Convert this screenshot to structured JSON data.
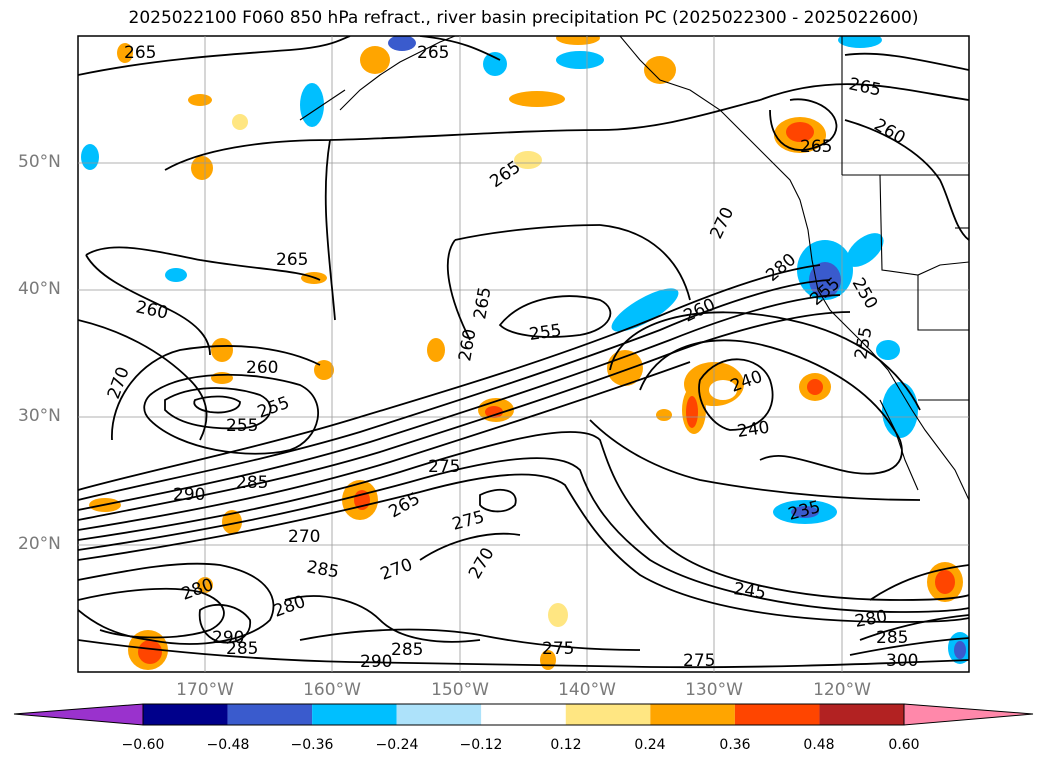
{
  "title": "2025022100 F060 850 hPa refract., river basin precipitation PC (2025022300 - 2025022600)",
  "lat_labels": [
    "50°N",
    "40°N",
    "30°N",
    "20°N"
  ],
  "lon_labels": [
    "170°W",
    "160°W",
    "150°W",
    "140°W",
    "130°W",
    "120°W"
  ],
  "colorbar": {
    "ticks": [
      "−0.60",
      "−0.48",
      "−0.36",
      "−0.24",
      "−0.12",
      "0.12",
      "0.24",
      "0.36",
      "0.48",
      "0.60"
    ],
    "colors": [
      "#9a32cd",
      "#00008b",
      "#3a5bcd",
      "#00bfff",
      "#ade2fa",
      "#ffffff",
      "#ffe682",
      "#ffa500",
      "#ff4500",
      "#b22222",
      "#ff88aa"
    ]
  },
  "contour_labels": [
    "265",
    "265",
    "265",
    "265",
    "260",
    "265",
    "265",
    "260",
    "270",
    "260",
    "255",
    "265",
    "260",
    "255",
    "260",
    "270",
    "255",
    "250",
    "240",
    "240",
    "280",
    "255",
    "255",
    "275",
    "290",
    "285",
    "265",
    "275",
    "270",
    "285",
    "270",
    "270",
    "280",
    "280",
    "290",
    "285",
    "285",
    "290",
    "275",
    "275",
    "245",
    "235",
    "280",
    "285",
    "300"
  ]
}
